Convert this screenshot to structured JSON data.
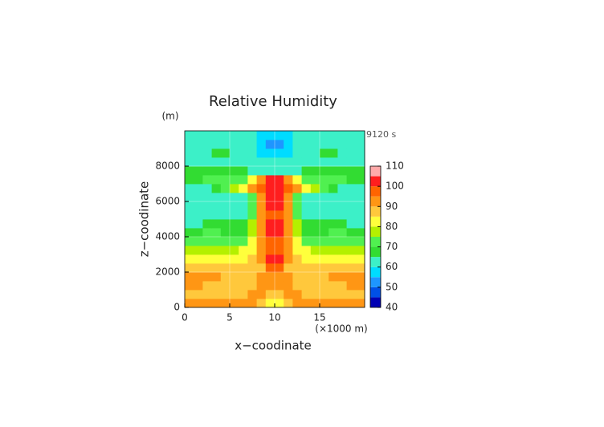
{
  "chart_data": {
    "type": "contour",
    "title": "Relative Humidity",
    "y_unit": "(m)",
    "time_label": "9120 s",
    "xlabel": "x−coodinate",
    "ylabel": "z−coodinate",
    "x_unit": "(×1000 m)",
    "xlim": [
      0,
      20
    ],
    "ylim": [
      0,
      10000
    ],
    "xticks": [
      0,
      5,
      10,
      15
    ],
    "yticks": [
      0,
      2000,
      4000,
      6000,
      8000
    ],
    "grid": true,
    "x": [
      0.5,
      1.5,
      2.5,
      3.5,
      4.5,
      5.5,
      6.5,
      7.5,
      8.5,
      9.5,
      10.5,
      11.5,
      12.5,
      13.5,
      14.5,
      15.5,
      16.5,
      17.5,
      18.5,
      19.5
    ],
    "y": [
      250,
      750,
      1250,
      1750,
      2250,
      2750,
      3250,
      3750,
      4250,
      4750,
      5250,
      5750,
      6250,
      6750,
      7250,
      7750,
      8250,
      8750,
      9250,
      9750
    ],
    "z": [
      [
        92,
        92,
        93,
        92,
        91,
        90,
        90,
        90,
        88,
        82,
        82,
        88,
        90,
        90,
        90,
        91,
        92,
        93,
        92,
        92
      ],
      [
        88,
        88,
        88,
        88,
        88,
        88,
        88,
        90,
        93,
        88,
        88,
        93,
        90,
        88,
        88,
        88,
        88,
        88,
        88,
        88
      ],
      [
        90,
        90,
        89,
        88,
        88,
        88,
        88,
        88,
        90,
        92,
        92,
        90,
        88,
        88,
        88,
        88,
        88,
        89,
        90,
        90
      ],
      [
        93,
        93,
        92,
        90,
        88,
        88,
        88,
        88,
        90,
        94,
        94,
        90,
        88,
        88,
        88,
        88,
        90,
        92,
        93,
        93
      ],
      [
        88,
        88,
        87,
        87,
        86,
        86,
        86,
        87,
        89,
        95,
        95,
        89,
        87,
        86,
        86,
        86,
        87,
        87,
        88,
        88
      ],
      [
        82,
        82,
        82,
        82,
        82,
        82,
        83,
        86,
        92,
        101,
        101,
        92,
        86,
        83,
        82,
        82,
        82,
        82,
        82,
        82
      ],
      [
        77,
        77,
        76,
        76,
        76,
        78,
        80,
        84,
        92,
        98,
        98,
        92,
        84,
        80,
        78,
        76,
        76,
        76,
        77,
        77
      ],
      [
        72,
        72,
        73,
        74,
        72,
        70,
        72,
        80,
        92,
        98,
        98,
        92,
        80,
        72,
        70,
        72,
        74,
        73,
        72,
        72
      ],
      [
        68,
        68,
        70,
        72,
        68,
        67,
        68,
        76,
        92,
        101,
        101,
        92,
        76,
        68,
        67,
        68,
        72,
        70,
        68,
        68
      ],
      [
        64,
        64,
        65,
        66,
        66,
        67,
        68,
        76,
        92,
        100,
        100,
        92,
        76,
        68,
        67,
        66,
        66,
        65,
        64,
        64
      ],
      [
        62,
        62,
        62,
        62,
        62,
        63,
        64,
        74,
        92,
        99,
        99,
        92,
        74,
        64,
        63,
        62,
        62,
        62,
        62,
        62
      ],
      [
        62,
        62,
        62,
        62,
        62,
        62,
        63,
        72,
        92,
        101,
        101,
        92,
        72,
        63,
        62,
        62,
        62,
        62,
        62,
        62
      ],
      [
        62,
        62,
        62,
        62,
        62,
        62,
        63,
        74,
        93,
        100,
        100,
        93,
        74,
        63,
        62,
        62,
        62,
        62,
        62,
        62
      ],
      [
        64,
        64,
        64,
        66,
        70,
        75,
        82,
        90,
        96,
        102,
        102,
        96,
        90,
        82,
        75,
        70,
        66,
        64,
        64,
        64
      ],
      [
        68,
        68,
        70,
        72,
        72,
        70,
        72,
        80,
        94,
        101,
        101,
        94,
        80,
        72,
        70,
        72,
        72,
        70,
        68,
        68
      ],
      [
        66,
        66,
        67,
        68,
        68,
        67,
        65,
        64,
        63,
        62,
        62,
        63,
        64,
        65,
        67,
        68,
        68,
        67,
        66,
        66
      ],
      [
        62,
        62,
        63,
        64,
        64,
        64,
        64,
        63,
        62,
        60,
        60,
        62,
        63,
        64,
        64,
        64,
        64,
        63,
        62,
        62
      ],
      [
        62,
        62,
        64,
        66,
        66,
        64,
        62,
        61,
        59,
        55,
        55,
        59,
        61,
        62,
        64,
        66,
        66,
        64,
        62,
        62
      ],
      [
        62,
        62,
        62,
        62,
        62,
        62,
        61,
        60,
        57,
        52,
        52,
        57,
        60,
        61,
        62,
        62,
        62,
        62,
        62,
        62
      ],
      [
        60,
        60,
        61,
        61,
        61,
        61,
        61,
        60,
        58,
        56,
        56,
        58,
        60,
        61,
        61,
        61,
        61,
        61,
        60,
        60
      ]
    ],
    "levels": [
      40,
      45,
      50,
      55,
      60,
      65,
      70,
      75,
      80,
      85,
      90,
      95,
      100,
      105,
      110
    ],
    "colors": [
      "#0000b4",
      "#0050e6",
      "#1e96ff",
      "#00dcff",
      "#3cf0c8",
      "#32dc32",
      "#50f050",
      "#b4f000",
      "#ffff3c",
      "#ffc83c",
      "#ff9614",
      "#ff6400",
      "#ff1e1e",
      "#ffaaaa"
    ],
    "cticks": [
      40,
      50,
      60,
      70,
      80,
      90,
      100,
      110
    ]
  }
}
